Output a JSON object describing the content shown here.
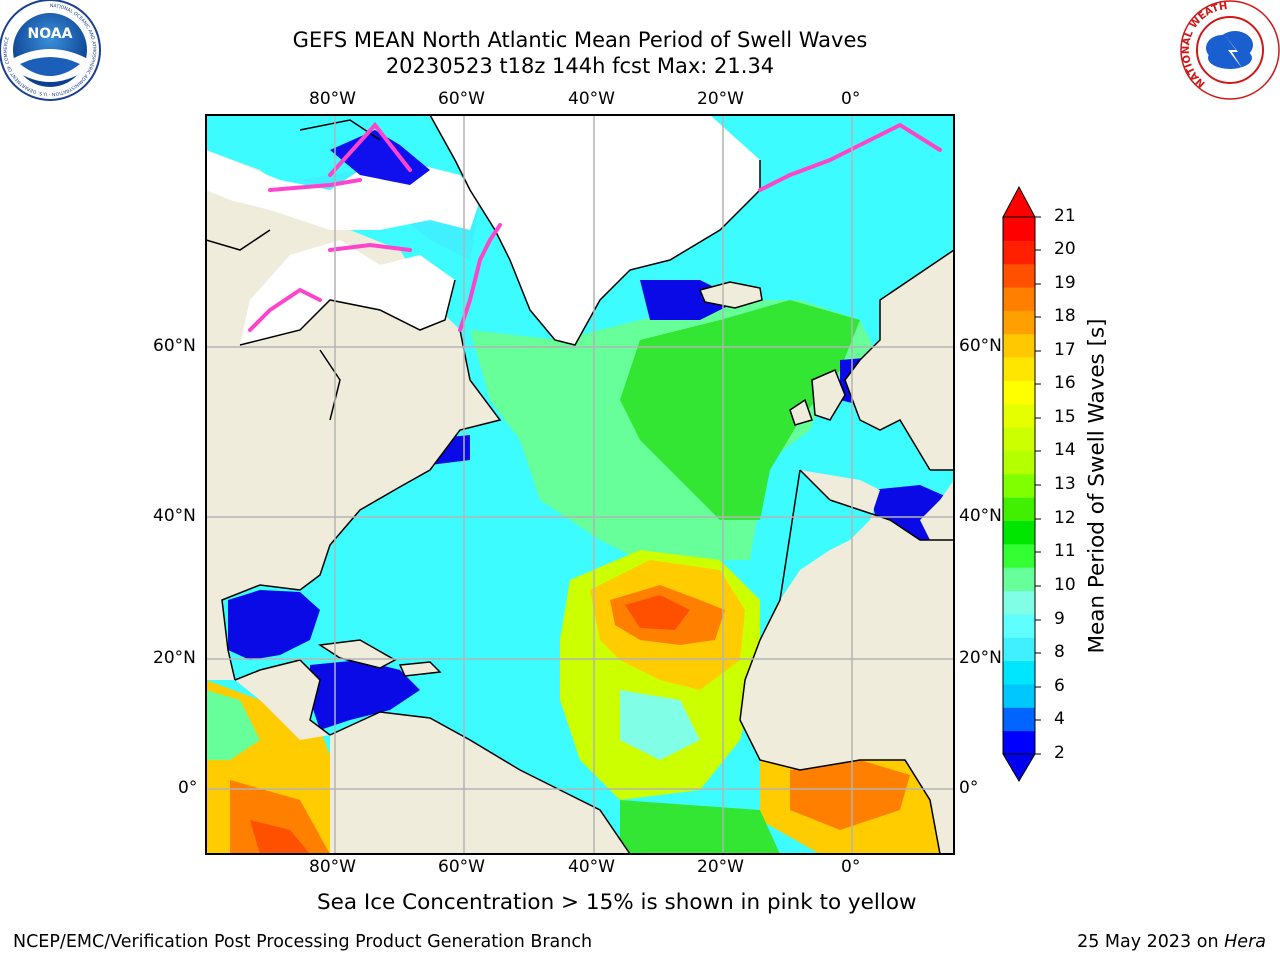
{
  "title_line1": "GEFS MEAN North Atlantic Mean Period of Swell Waves",
  "title_line2": "20230523 t18z 144h fcst   Max: 21.34",
  "logos": {
    "left": {
      "name": "NOAA",
      "text": "NOAA",
      "ring_text": "NATIONAL OCEANIC AND ATMOSPHERIC ADMINISTRATION · U.S. DEPARTMENT OF COMMERCE"
    },
    "right": {
      "name": "National Weather Service",
      "ring_text": "NATIONAL WEATHER SERVICE"
    }
  },
  "map": {
    "lon_labels": [
      "80°W",
      "60°W",
      "40°W",
      "20°W",
      "0°"
    ],
    "lat_labels": [
      "60°N",
      "40°N",
      "20°N",
      "0°"
    ],
    "land_color": "#efecdc",
    "ice_color": "#ffffff",
    "grid_color": "#b3b3b3",
    "regions": [
      {
        "name": "Caribbean / Gulf of Mexico",
        "period": "2-4 s",
        "color": "#0a0ae6"
      },
      {
        "name": "Western Atlantic",
        "period": "6-8 s",
        "color": "#3cfcff"
      },
      {
        "name": "Central Atlantic",
        "period": "9-10 s",
        "color": "#66ff99"
      },
      {
        "name": "Northeast Atlantic",
        "period": "10-12 s",
        "color": "#33e633"
      },
      {
        "name": "Subtropical east Atlantic",
        "period": "13-19 s",
        "color": "#ff8000"
      },
      {
        "name": "Equatorial Pacific / Gulf of Guinea",
        "period": "14-20 s",
        "color": "#ffcc00"
      }
    ]
  },
  "colorbar": {
    "title": "Mean Period of Swell Waves [s]",
    "ticks": [
      "21",
      "20",
      "19",
      "18",
      "17",
      "16",
      "15",
      "14",
      "13",
      "12",
      "11",
      "10",
      "9",
      "8",
      "6",
      "4",
      "2"
    ],
    "colors": [
      "#0000ff",
      "#0064ff",
      "#00c8ff",
      "#00e6ff",
      "#40f0ff",
      "#60ffff",
      "#80ffe6",
      "#66ff99",
      "#33ff33",
      "#00e600",
      "#40f000",
      "#80ff00",
      "#b4ff00",
      "#ccff00",
      "#e6ff00",
      "#ffff00",
      "#ffe600",
      "#ffc800",
      "#ffa000",
      "#ff8000",
      "#ff5000",
      "#ff2000",
      "#ff0000"
    ]
  },
  "note": "Sea Ice Concentration > 15% is shown in pink to yellow",
  "footer_left": "NCEP/EMC/Verification Post Processing Product Generation Branch",
  "footer_right_date": "25 May 2023 on",
  "footer_right_host": "Hera"
}
